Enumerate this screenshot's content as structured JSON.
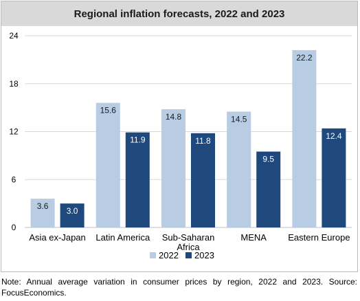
{
  "chart_data": {
    "type": "bar",
    "title": "Regional inflation forecasts, 2022 and 2023",
    "categories": [
      "Asia ex-Japan",
      "Latin America",
      "Sub-Saharan Africa",
      "MENA",
      "Eastern Europe"
    ],
    "category_lines": [
      [
        "Asia ex-Japan"
      ],
      [
        "Latin America"
      ],
      [
        "Sub-Saharan",
        "Africa"
      ],
      [
        "MENA"
      ],
      [
        "Eastern Europe"
      ]
    ],
    "series": [
      {
        "name": "2022",
        "values": [
          3.6,
          15.6,
          14.8,
          14.5,
          22.2
        ],
        "color": "#b8cce4"
      },
      {
        "name": "2023",
        "values": [
          3.0,
          11.9,
          11.8,
          9.5,
          12.4
        ],
        "color": "#1f497d"
      }
    ],
    "y_ticks": [
      0,
      6,
      12,
      18,
      24
    ],
    "ylim": [
      0,
      24
    ],
    "grid": true,
    "legend_position": "bottom-center",
    "xlabel": "",
    "ylabel": ""
  },
  "note": "Note: Annual average variation in consumer prices by region, 2022 and 2023. Source: FocusEconomics."
}
